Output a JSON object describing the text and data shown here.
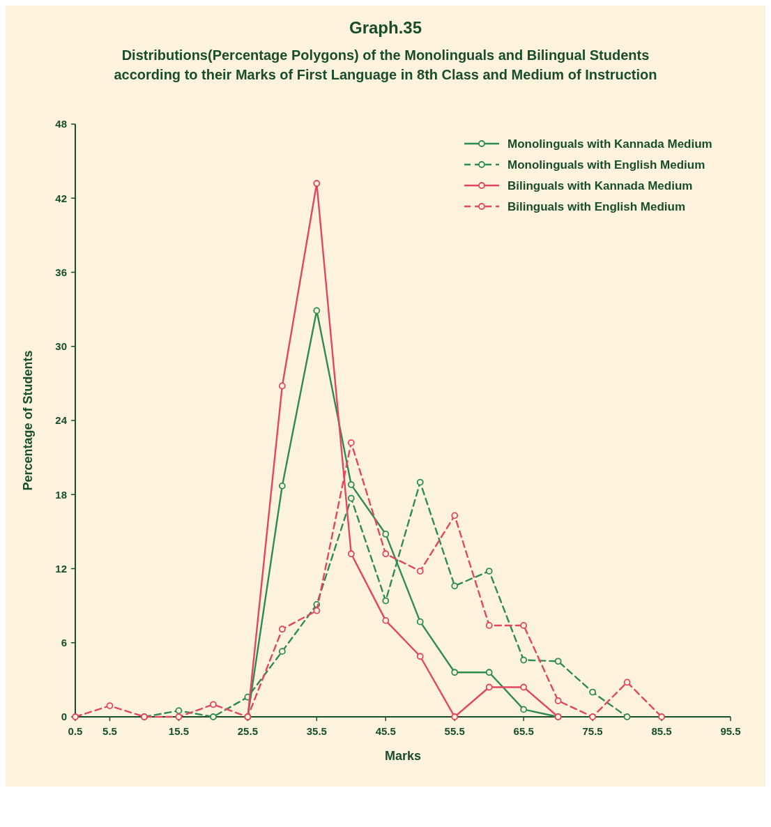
{
  "chart_data": {
    "type": "line",
    "title": "Graph.35",
    "subtitle": "Distributions(Percentage Polygons) of the Monolinguals and Bilingual Students according to their Marks of First Language in 8th Class and Medium of Instruction",
    "xlabel": "Marks",
    "ylabel": "Percentage of Students",
    "xlim": [
      0.5,
      95.5
    ],
    "xticks": [
      0.5,
      5.5,
      15.5,
      25.5,
      35.5,
      45.5,
      55.5,
      65.5,
      75.5,
      85.5,
      95.5
    ],
    "ylim": [
      0,
      48
    ],
    "yticks": [
      0,
      6,
      12,
      18,
      24,
      30,
      36,
      42,
      48
    ],
    "marker": "circle",
    "legend": "top right",
    "series": [
      {
        "name": "Monolinguals with Kannada Medium",
        "color": "#2e8b4e",
        "line_style": "solid",
        "x": [
          25.5,
          30.5,
          35.5,
          40.5,
          45.5,
          50.5,
          55.5,
          60.5,
          65.5,
          70.5
        ],
        "values": [
          0,
          18.7,
          32.9,
          18.8,
          14.8,
          7.7,
          3.6,
          3.6,
          0.6,
          0
        ]
      },
      {
        "name": "Monolinguals with English Medium",
        "color": "#2e8b4e",
        "line_style": "dashed",
        "x": [
          10.5,
          15.5,
          20.5,
          25.5,
          30.5,
          35.5,
          40.5,
          45.5,
          50.5,
          55.5,
          60.5,
          65.5,
          70.5,
          75.5,
          80.5
        ],
        "values": [
          0,
          0.5,
          0,
          1.6,
          5.3,
          9.1,
          17.7,
          9.4,
          19.0,
          10.6,
          11.8,
          4.6,
          4.5,
          2.0,
          0
        ]
      },
      {
        "name": "Bilinguals with Kannada Medium",
        "color": "#e2465e",
        "line_style": "solid",
        "x": [
          25.5,
          30.5,
          35.5,
          40.5,
          45.5,
          50.5,
          55.5,
          60.5,
          65.5,
          70.5
        ],
        "values": [
          0,
          26.8,
          43.2,
          13.2,
          7.8,
          4.9,
          0,
          2.4,
          2.4,
          0
        ]
      },
      {
        "name": "Bilinguals with English Medium",
        "color": "#e2465e",
        "line_style": "dashed",
        "x": [
          0.5,
          5.5,
          10.5,
          15.5,
          20.5,
          25.5,
          30.5,
          35.5,
          40.5,
          45.5,
          50.5,
          55.5,
          60.5,
          65.5,
          70.5,
          75.5,
          80.5,
          85.5
        ],
        "values": [
          0,
          0.9,
          0,
          0,
          1.0,
          0,
          7.1,
          8.6,
          22.2,
          13.2,
          11.8,
          16.3,
          7.4,
          7.4,
          1.3,
          0,
          2.8,
          0
        ]
      }
    ]
  }
}
